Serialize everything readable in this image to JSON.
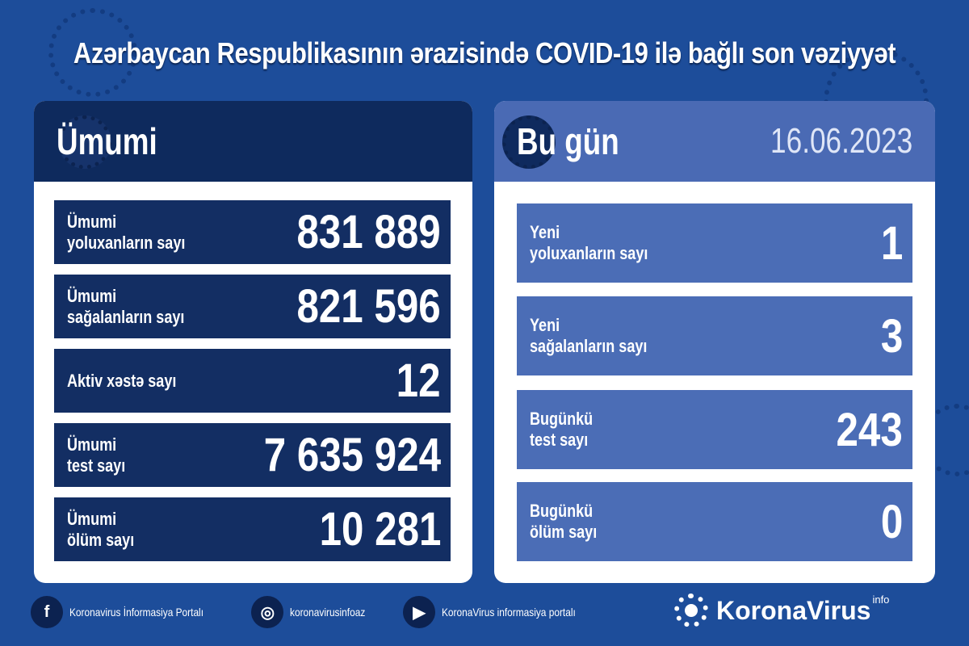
{
  "title": "Azərbaycan Respublikasının ərazisində COVID-19 ilə bağlı son vəziyyət",
  "left": {
    "heading": "Ümumi",
    "rows": [
      {
        "label1": "Ümumi",
        "label2": "yoluxanların sayı",
        "value": "831 889"
      },
      {
        "label1": "Ümumi",
        "label2": "sağalanların sayı",
        "value": "821 596"
      },
      {
        "label1": "Aktiv xəstə sayı",
        "label2": "",
        "value": "12"
      },
      {
        "label1": "Ümumi",
        "label2": "test sayı",
        "value": "7 635 924"
      },
      {
        "label1": "Ümumi",
        "label2": "ölüm sayı",
        "value": "10 281"
      }
    ]
  },
  "right": {
    "heading": "Bu gün",
    "date": "16.06.2023",
    "rows": [
      {
        "label1": "Yeni",
        "label2": "yoluxanların sayı",
        "value": "1"
      },
      {
        "label1": "Yeni",
        "label2": "sağalanların sayı",
        "value": "3"
      },
      {
        "label1": "Bugünkü",
        "label2": "test sayı",
        "value": "243"
      },
      {
        "label1": "Bugünkü",
        "label2": "ölüm sayı",
        "value": "0"
      }
    ]
  },
  "footer": {
    "items": [
      {
        "icon": "facebook-icon",
        "text": "Koronavirus İnformasiya Portalı"
      },
      {
        "icon": "instagram-icon",
        "text": "koronavirusinfoaz"
      },
      {
        "icon": "youtube-icon",
        "text": "KoronaVirus informasiya portalı"
      }
    ],
    "brand": "KoronaVirus",
    "brand_sup": "info"
  },
  "colors": {
    "background": "#1d4d9a",
    "left_dark": "#132e63",
    "right_blue": "#4b6db6"
  }
}
